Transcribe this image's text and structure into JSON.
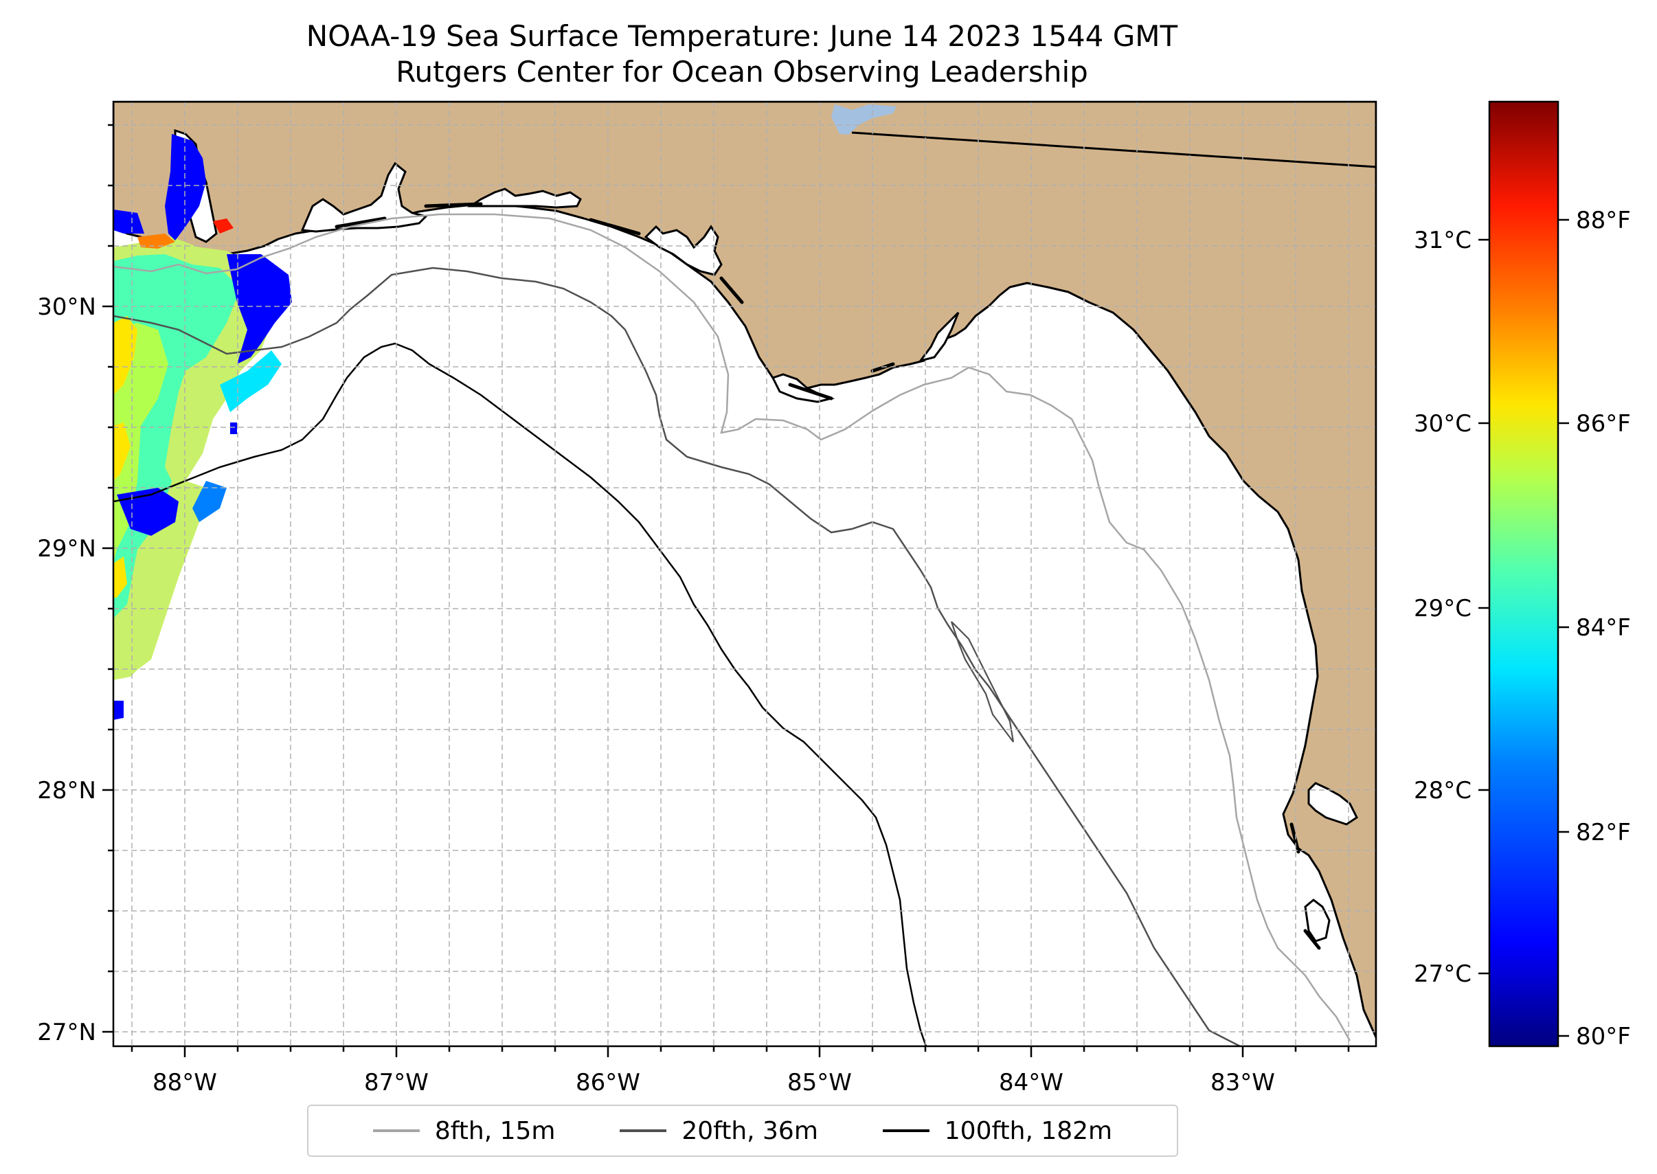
{
  "title": {
    "line1": "NOAA-19 Sea Surface Temperature: June 14 2023 1544 GMT",
    "line2": "Rutgers Center for Ocean Observing Leadership"
  },
  "axes": {
    "lon_ticks": [
      "88°W",
      "87°W",
      "86°W",
      "85°W",
      "84°W",
      "83°W"
    ],
    "lat_ticks": [
      "27°N",
      "28°N",
      "29°N",
      "30°N"
    ]
  },
  "colorbar": {
    "celsius_ticks": [
      "27°C",
      "28°C",
      "29°C",
      "30°C",
      "31°C"
    ],
    "fahrenheit_ticks": [
      "80°F",
      "82°F",
      "84°F",
      "86°F",
      "88°F"
    ],
    "colormap": [
      "#000080",
      "#0000ff",
      "#0080ff",
      "#00e6ff",
      "#4dffb3",
      "#b3ff4d",
      "#ffe600",
      "#ff8000",
      "#ff1a00",
      "#800000"
    ]
  },
  "legend": [
    {
      "label": "8fth, 15m",
      "color": "#a6a6a6"
    },
    {
      "label": "20fth, 36m",
      "color": "#505050"
    },
    {
      "label": "100fth, 182m",
      "color": "#000000"
    }
  ],
  "colors": {
    "land": "#d2b48c",
    "ocean": "#ffffff",
    "lake": "#a3c0e0",
    "grid": "#b0b0b0"
  }
}
